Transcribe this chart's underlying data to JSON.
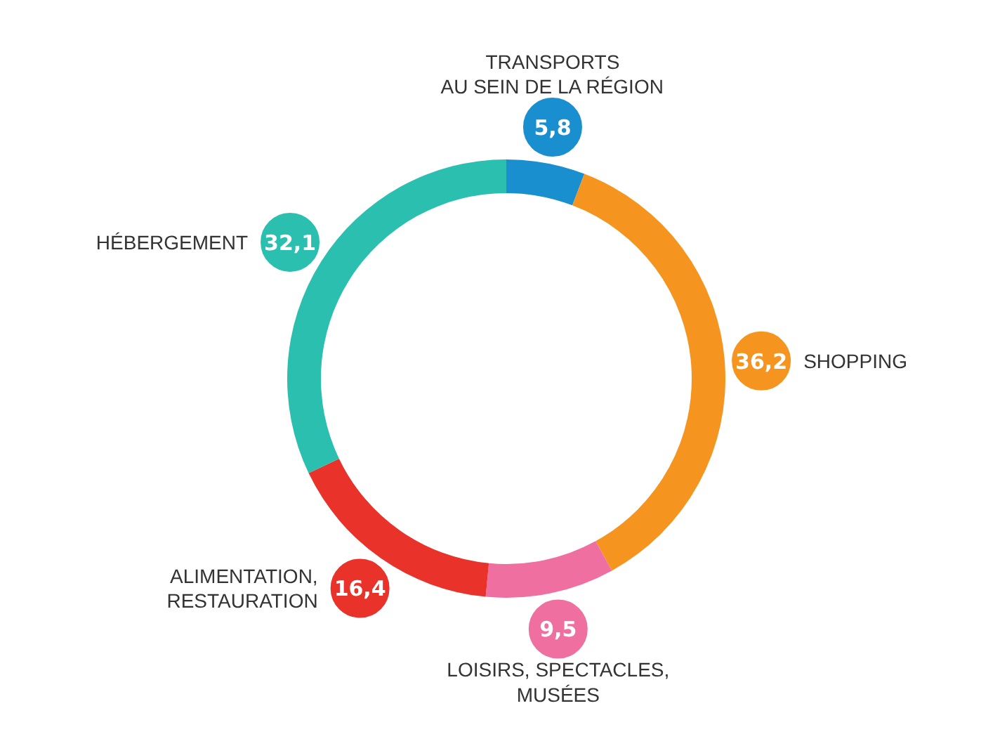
{
  "chart_data": {
    "type": "donut",
    "categories": [
      "TRANSPORTS\nAU SEIN DE LA RÉGION",
      "SHOPPING",
      "LOISIRS, SPECTACLES,\nMUSÉES",
      "ALIMENTATION,\nRESTAURATION",
      "HÉBERGEMENT"
    ],
    "values": [
      5.8,
      36.2,
      9.5,
      16.4,
      32.1
    ],
    "value_labels": [
      "5,8",
      "36,2",
      "9,5",
      "16,4",
      "32,1"
    ],
    "colors": [
      "#1a8fd0",
      "#f5941f",
      "#ee6fa0",
      "#e8322a",
      "#2bbfb0"
    ]
  }
}
